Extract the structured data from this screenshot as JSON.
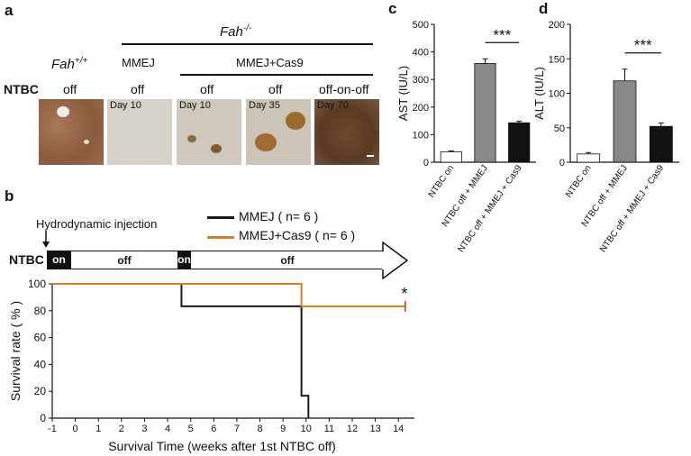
{
  "panel_a": {
    "letter": "a",
    "fah_ko_label": "Fah",
    "fah_ko_sup": "-/-",
    "fah_wt_label": "Fah",
    "fah_wt_sup": "+/+",
    "mmej_label": "MMEJ",
    "mmej_cas9_label": "MMEJ+Cas9",
    "ntbc_label": "NTBC",
    "conditions": [
      "off",
      "off",
      "off",
      "off",
      "off-on-off"
    ],
    "days": [
      "",
      "Day 10",
      "Day 10",
      "Day 35",
      "Day 70"
    ]
  },
  "panel_b": {
    "letter": "b",
    "injection_label": "Hydrodynamic injection",
    "ntbc_label": "NTBC",
    "segments": [
      "on",
      "off",
      "on",
      "off"
    ],
    "legend": [
      {
        "name": "MMEJ ( n= 6 )",
        "color": "#1a1a1a"
      },
      {
        "name": "MMEJ+Cas9 ( n= 6 )",
        "color": "#d2802c"
      }
    ],
    "significance": "*"
  },
  "chart_data": [
    {
      "type": "line",
      "subtype": "step-survival",
      "xlabel": "Survival Time (weeks after 1st NTBC off)",
      "ylabel": "Survival rate ( % )",
      "xlim": [
        -1,
        14.5
      ],
      "ylim": [
        0,
        100
      ],
      "xticks": [
        "-1",
        "0",
        "1",
        "2",
        "3",
        "4",
        "5",
        "6",
        "7",
        "8",
        "9",
        "10",
        "11",
        "12",
        "13",
        "14"
      ],
      "yticks": [
        "0",
        "20",
        "40",
        "60",
        "80",
        "100"
      ],
      "series": [
        {
          "name": "MMEJ ( n= 6 )",
          "color": "#1a1a1a",
          "x": [
            -1,
            4.6,
            4.6,
            9.8,
            9.8,
            10.1,
            10.1
          ],
          "y": [
            100,
            100,
            83.3,
            83.3,
            16.7,
            16.7,
            0
          ]
        },
        {
          "name": "MMEJ+Cas9 ( n= 6 )",
          "color": "#d2802c",
          "x": [
            -1,
            9.8,
            9.8,
            14.3
          ],
          "y": [
            100,
            100,
            83.3,
            83.3
          ]
        }
      ]
    },
    {
      "type": "bar",
      "panel": "c",
      "ylabel": "AST (IU/L)",
      "ylim": [
        0,
        500
      ],
      "yticks": [
        "0",
        "100",
        "200",
        "300",
        "400",
        "500"
      ],
      "categories": [
        "NTBC on",
        "NTBC off + MMEJ",
        "NTBC off + MMEJ + Cas9"
      ],
      "values": [
        38,
        358,
        143
      ],
      "errors": [
        3,
        17,
        6
      ],
      "colors": [
        "#ffffff",
        "#888888",
        "#111111"
      ],
      "significance": "***"
    },
    {
      "type": "bar",
      "panel": "d",
      "ylabel": "ALT (IU/L)",
      "ylim": [
        0,
        200
      ],
      "yticks": [
        "0",
        "50",
        "100",
        "150",
        "200"
      ],
      "categories": [
        "NTBC on",
        "NTBC off + MMEJ",
        "NTBC off + MMEJ + Cas9"
      ],
      "values": [
        12,
        118,
        52
      ],
      "errors": [
        2,
        17,
        5
      ],
      "colors": [
        "#ffffff",
        "#888888",
        "#111111"
      ],
      "significance": "***"
    }
  ]
}
